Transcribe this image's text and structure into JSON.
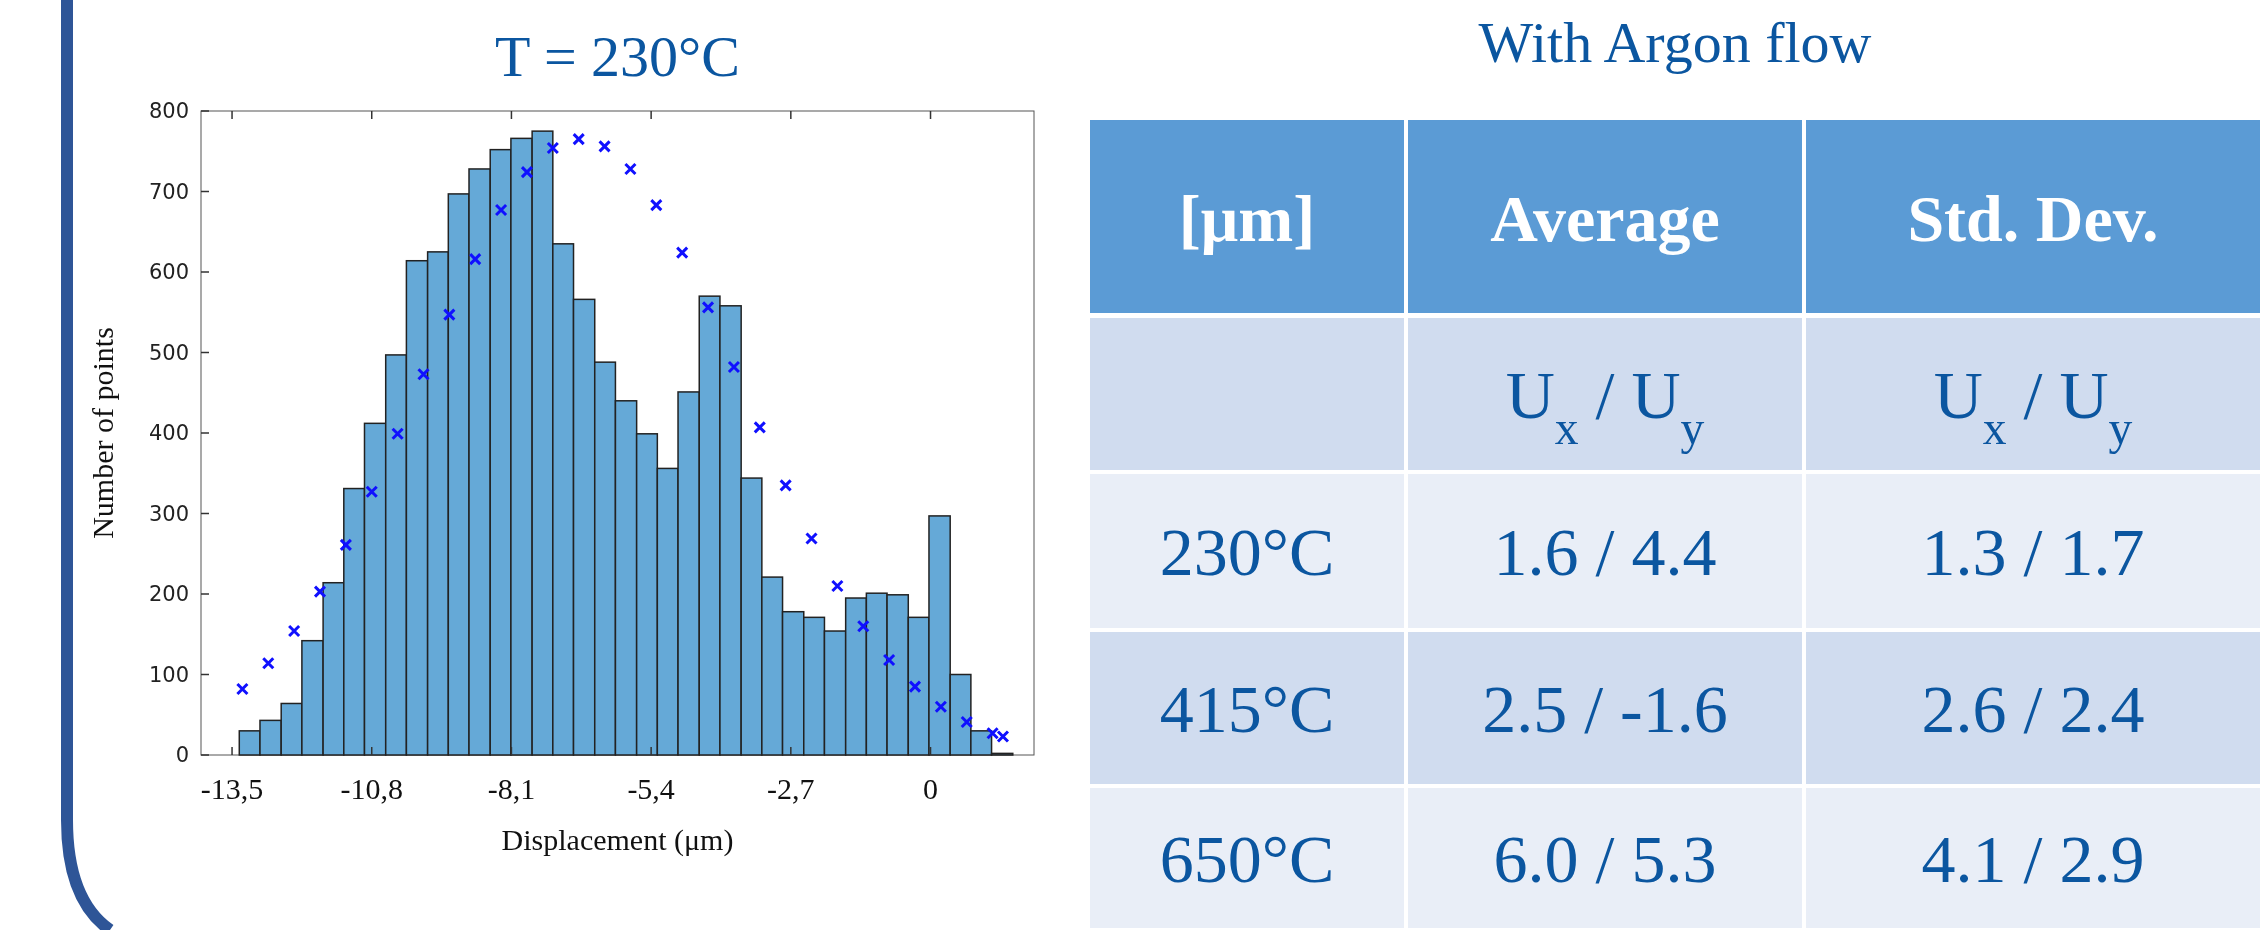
{
  "chart_data": [
    {
      "type": "histogram",
      "title": "T = 230°C",
      "xlabel": "Displacement (μm)",
      "ylabel": "Number of points",
      "xlim": [
        -14.1,
        2.0
      ],
      "ylim": [
        0,
        800
      ],
      "xticks": [
        {
          "value": -13.5,
          "label": "-13,5"
        },
        {
          "value": -10.8,
          "label": "-10,8"
        },
        {
          "value": -8.1,
          "label": "-8,1"
        },
        {
          "value": -5.4,
          "label": "-5,4"
        },
        {
          "value": -2.7,
          "label": "-2,7"
        },
        0
      ],
      "yticks": [
        0,
        100,
        200,
        300,
        400,
        500,
        600,
        700,
        800
      ],
      "grid": false,
      "series": [
        {
          "type": "histogram",
          "color": "#65a9d7",
          "bins": [
            -13.36,
            -12.96,
            -12.55,
            -12.15,
            -11.74,
            -11.34,
            -10.94,
            -10.53,
            -10.13,
            -9.72,
            -9.32,
            -8.92,
            -8.51,
            -8.11,
            -7.7,
            -7.3,
            -6.9,
            -6.49,
            -6.09,
            -5.68,
            -5.28,
            -4.88,
            -4.47,
            -4.07,
            -3.66,
            -3.26,
            -2.86,
            -2.45,
            -2.05,
            -1.64,
            -1.24,
            -0.84,
            -0.43,
            -0.03,
            0.38,
            0.78,
            1.18,
            1.59
          ],
          "values": [
            30,
            43,
            64,
            142,
            214,
            331,
            412,
            497,
            614,
            625,
            697,
            728,
            752,
            766,
            775,
            635,
            566,
            488,
            440,
            399,
            356,
            451,
            570,
            558,
            344,
            221,
            178,
            171,
            154,
            195,
            201,
            199,
            171,
            297,
            100,
            30,
            2
          ]
        },
        {
          "type": "scatter",
          "color": "#1010ff",
          "marker": "cross",
          "x": [
            -13.3,
            -12.8,
            -12.3,
            -11.8,
            -11.3,
            -10.8,
            -10.3,
            -9.8,
            -9.3,
            -8.8,
            -8.3,
            -7.8,
            -7.3,
            -6.8,
            -6.3,
            -5.8,
            -5.3,
            -4.8,
            -4.3,
            -3.8,
            -3.3,
            -2.8,
            -2.3,
            -1.8,
            -1.3,
            -0.8,
            -0.3,
            0.2,
            0.7,
            1.2,
            1.4
          ],
          "values": [
            82,
            114,
            154,
            203,
            261,
            327,
            399,
            473,
            547,
            616,
            677,
            724,
            754,
            765,
            756,
            728,
            683,
            624,
            556,
            482,
            407,
            335,
            269,
            210,
            160,
            118,
            85,
            60,
            41,
            27,
            23
          ]
        }
      ]
    },
    {
      "type": "other",
      "title": "With Argon flow",
      "categories": [
        "[μm]",
        "Average",
        "Std. Dev."
      ],
      "y_categories": [
        null,
        "230°C",
        "415°C",
        "650°C"
      ],
      "cell_labels": [
        [
          "U$_{x}$ / U$_{y}$",
          "U$_{x}$ / U$_{y}$"
        ],
        [
          "1.6 / 4.4",
          "1.3 / 1.7"
        ],
        [
          "2.5 / -1.6",
          "2.6 / 2.4"
        ],
        [
          "6.0 / 5.3",
          "4.1 / 2.9"
        ]
      ]
    }
  ]
}
